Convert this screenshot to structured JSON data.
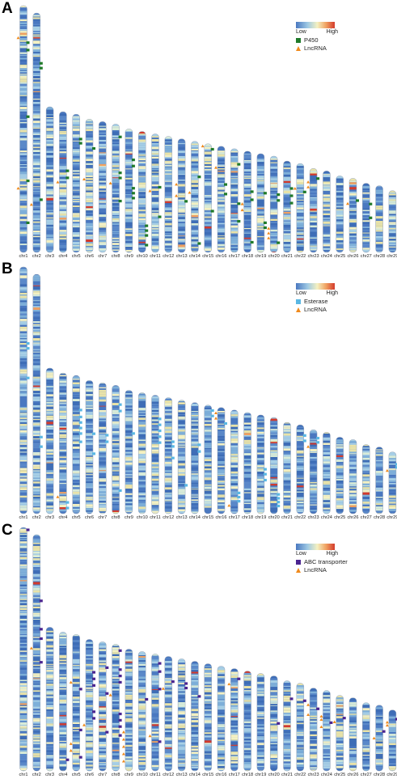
{
  "chromosomes": [
    "chr1",
    "chr2",
    "chr3",
    "chr4",
    "chr5",
    "chr6",
    "chr7",
    "chr8",
    "chr9",
    "chr10",
    "chr11",
    "chr12",
    "chr13",
    "chr14",
    "chr15",
    "chr16",
    "chr17",
    "chr18",
    "chr19",
    "chr20",
    "chr21",
    "chr22",
    "chr23",
    "chr24",
    "chr25",
    "chr26",
    "chr27",
    "chr28",
    "chr29"
  ],
  "chr_lengths_rel": [
    1.0,
    0.97,
    0.59,
    0.57,
    0.56,
    0.54,
    0.53,
    0.52,
    0.5,
    0.49,
    0.48,
    0.47,
    0.46,
    0.45,
    0.44,
    0.43,
    0.42,
    0.41,
    0.4,
    0.39,
    0.37,
    0.36,
    0.34,
    0.33,
    0.31,
    0.3,
    0.28,
    0.27,
    0.25
  ],
  "colors": {
    "low": "#4a78c0",
    "mid": "#f4f1c2",
    "high": "#d33a2c",
    "lncrna": "#f08a1c",
    "p450": "#1f7a2a",
    "esterase": "#5ab7e3",
    "abc": "#4b2590"
  },
  "panels": [
    {
      "letter": "A",
      "legend": {
        "low": "Low",
        "high": "High",
        "gene_label": "P450",
        "lnc_label": "LncRNA",
        "gene_color": "#1f7a2a"
      },
      "markers": [
        {
          "chr": 1,
          "pos": 0.15,
          "type": "gene"
        },
        {
          "chr": 1,
          "pos": 0.18,
          "type": "gene"
        },
        {
          "chr": 1,
          "pos": 0.13,
          "type": "lnc"
        },
        {
          "chr": 1,
          "pos": 0.45,
          "type": "gene"
        },
        {
          "chr": 1,
          "pos": 0.71,
          "type": "gene"
        },
        {
          "chr": 1,
          "pos": 0.74,
          "type": "lnc"
        },
        {
          "chr": 1,
          "pos": 0.88,
          "type": "gene"
        },
        {
          "chr": 2,
          "pos": 0.21,
          "type": "gene"
        },
        {
          "chr": 2,
          "pos": 0.23,
          "type": "gene"
        },
        {
          "chr": 2,
          "pos": 0.78,
          "type": "gene"
        },
        {
          "chr": 2,
          "pos": 0.8,
          "type": "lnc"
        },
        {
          "chr": 4,
          "pos": 0.42,
          "type": "gene"
        },
        {
          "chr": 4,
          "pos": 0.47,
          "type": "gene"
        },
        {
          "chr": 4,
          "pos": 0.5,
          "type": "lnc"
        },
        {
          "chr": 5,
          "pos": 0.18,
          "type": "gene"
        },
        {
          "chr": 5,
          "pos": 0.21,
          "type": "gene"
        },
        {
          "chr": 6,
          "pos": 0.22,
          "type": "gene"
        },
        {
          "chr": 6,
          "pos": 0.45,
          "type": "lnc"
        },
        {
          "chr": 8,
          "pos": 0.1,
          "type": "gene"
        },
        {
          "chr": 8,
          "pos": 0.38,
          "type": "gene"
        },
        {
          "chr": 8,
          "pos": 0.42,
          "type": "gene"
        },
        {
          "chr": 8,
          "pos": 0.46,
          "type": "lnc"
        },
        {
          "chr": 8,
          "pos": 0.6,
          "type": "gene"
        },
        {
          "chr": 9,
          "pos": 0.25,
          "type": "gene"
        },
        {
          "chr": 9,
          "pos": 0.3,
          "type": "gene"
        },
        {
          "chr": 9,
          "pos": 0.48,
          "type": "gene"
        },
        {
          "chr": 9,
          "pos": 0.52,
          "type": "gene"
        },
        {
          "chr": 9,
          "pos": 0.56,
          "type": "gene"
        },
        {
          "chr": 10,
          "pos": 0.78,
          "type": "gene"
        },
        {
          "chr": 10,
          "pos": 0.82,
          "type": "gene"
        },
        {
          "chr": 10,
          "pos": 0.86,
          "type": "gene"
        },
        {
          "chr": 10,
          "pos": 0.94,
          "type": "gene"
        },
        {
          "chr": 11,
          "pos": 0.45,
          "type": "gene"
        },
        {
          "chr": 11,
          "pos": 0.48,
          "type": "lnc"
        },
        {
          "chr": 11,
          "pos": 0.7,
          "type": "gene"
        },
        {
          "chr": 13,
          "pos": 0.4,
          "type": "lnc"
        },
        {
          "chr": 13,
          "pos": 0.5,
          "type": "lnc"
        },
        {
          "chr": 13,
          "pos": 0.55,
          "type": "gene"
        },
        {
          "chr": 14,
          "pos": 0.32,
          "type": "gene"
        },
        {
          "chr": 14,
          "pos": 0.46,
          "type": "lnc"
        },
        {
          "chr": 14,
          "pos": 0.92,
          "type": "gene"
        },
        {
          "chr": 15,
          "pos": 0.02,
          "type": "lnc"
        },
        {
          "chr": 15,
          "pos": 0.05,
          "type": "gene"
        },
        {
          "chr": 15,
          "pos": 0.62,
          "type": "gene"
        },
        {
          "chr": 16,
          "pos": 0.2,
          "type": "lnc"
        },
        {
          "chr": 16,
          "pos": 0.36,
          "type": "gene"
        },
        {
          "chr": 16,
          "pos": 0.45,
          "type": "gene"
        },
        {
          "chr": 17,
          "pos": 0.15,
          "type": "gene"
        },
        {
          "chr": 17,
          "pos": 0.53,
          "type": "gene"
        },
        {
          "chr": 17,
          "pos": 0.7,
          "type": "gene"
        },
        {
          "chr": 18,
          "pos": 0.4,
          "type": "gene"
        },
        {
          "chr": 18,
          "pos": 0.48,
          "type": "gene"
        },
        {
          "chr": 18,
          "pos": 0.52,
          "type": "lnc"
        },
        {
          "chr": 18,
          "pos": 0.58,
          "type": "lnc"
        },
        {
          "chr": 18,
          "pos": 0.9,
          "type": "gene"
        },
        {
          "chr": 19,
          "pos": 0.4,
          "type": "gene"
        },
        {
          "chr": 19,
          "pos": 0.7,
          "type": "gene"
        },
        {
          "chr": 19,
          "pos": 0.75,
          "type": "gene"
        },
        {
          "chr": 20,
          "pos": 0.4,
          "type": "gene"
        },
        {
          "chr": 20,
          "pos": 0.46,
          "type": "gene"
        },
        {
          "chr": 20,
          "pos": 0.75,
          "type": "lnc"
        },
        {
          "chr": 20,
          "pos": 0.8,
          "type": "lnc"
        },
        {
          "chr": 20,
          "pos": 0.85,
          "type": "lnc"
        },
        {
          "chr": 20,
          "pos": 0.9,
          "type": "gene"
        },
        {
          "chr": 21,
          "pos": 0.3,
          "type": "gene"
        },
        {
          "chr": 21,
          "pos": 0.38,
          "type": "gene"
        },
        {
          "chr": 21,
          "pos": 0.46,
          "type": "gene"
        },
        {
          "chr": 22,
          "pos": 0.28,
          "type": "lnc"
        },
        {
          "chr": 22,
          "pos": 0.32,
          "type": "gene"
        },
        {
          "chr": 23,
          "pos": 0.12,
          "type": "gene"
        },
        {
          "chr": 23,
          "pos": 0.16,
          "type": "lnc"
        },
        {
          "chr": 23,
          "pos": 0.22,
          "type": "lnc"
        },
        {
          "chr": 26,
          "pos": 0.3,
          "type": "gene"
        },
        {
          "chr": 26,
          "pos": 0.34,
          "type": "lnc"
        },
        {
          "chr": 27,
          "pos": 0.3,
          "type": "gene"
        },
        {
          "chr": 27,
          "pos": 0.5,
          "type": "gene"
        }
      ]
    },
    {
      "letter": "B",
      "legend": {
        "low": "Low",
        "high": "High",
        "gene_label": "Esterase",
        "lnc_label": "LncRNA",
        "gene_color": "#5ab7e3"
      },
      "markers": [
        {
          "chr": 1,
          "pos": 0.31,
          "type": "gene"
        },
        {
          "chr": 1,
          "pos": 0.33,
          "type": "gene"
        },
        {
          "chr": 1,
          "pos": 0.45,
          "type": "gene"
        },
        {
          "chr": 2,
          "pos": 0.68,
          "type": "gene"
        },
        {
          "chr": 2,
          "pos": 0.72,
          "type": "gene"
        },
        {
          "chr": 4,
          "pos": 0.88,
          "type": "lnc"
        },
        {
          "chr": 4,
          "pos": 0.92,
          "type": "gene"
        },
        {
          "chr": 4,
          "pos": 0.96,
          "type": "gene"
        },
        {
          "chr": 5,
          "pos": 0.25,
          "type": "gene"
        },
        {
          "chr": 5,
          "pos": 0.3,
          "type": "gene"
        },
        {
          "chr": 5,
          "pos": 0.34,
          "type": "gene"
        },
        {
          "chr": 5,
          "pos": 0.38,
          "type": "gene"
        },
        {
          "chr": 5,
          "pos": 0.42,
          "type": "gene"
        },
        {
          "chr": 5,
          "pos": 0.48,
          "type": "gene"
        },
        {
          "chr": 6,
          "pos": 0.4,
          "type": "gene"
        },
        {
          "chr": 6,
          "pos": 0.55,
          "type": "gene"
        },
        {
          "chr": 7,
          "pos": 0.4,
          "type": "gene"
        },
        {
          "chr": 7,
          "pos": 0.45,
          "type": "gene"
        },
        {
          "chr": 8,
          "pos": 0.15,
          "type": "gene"
        },
        {
          "chr": 8,
          "pos": 0.2,
          "type": "gene"
        },
        {
          "chr": 8,
          "pos": 0.82,
          "type": "gene"
        },
        {
          "chr": 9,
          "pos": 0.35,
          "type": "gene"
        },
        {
          "chr": 11,
          "pos": 0.2,
          "type": "gene"
        },
        {
          "chr": 11,
          "pos": 0.25,
          "type": "gene"
        },
        {
          "chr": 11,
          "pos": 0.3,
          "type": "gene"
        },
        {
          "chr": 11,
          "pos": 0.35,
          "type": "gene"
        },
        {
          "chr": 11,
          "pos": 0.4,
          "type": "gene"
        },
        {
          "chr": 12,
          "pos": 0.38,
          "type": "gene"
        },
        {
          "chr": 12,
          "pos": 0.42,
          "type": "gene"
        },
        {
          "chr": 12,
          "pos": 0.52,
          "type": "gene"
        },
        {
          "chr": 13,
          "pos": 0.75,
          "type": "gene"
        },
        {
          "chr": 14,
          "pos": 0.38,
          "type": "gene"
        },
        {
          "chr": 14,
          "pos": 0.44,
          "type": "gene"
        },
        {
          "chr": 15,
          "pos": 0.05,
          "type": "gene"
        },
        {
          "chr": 15,
          "pos": 0.1,
          "type": "gene"
        },
        {
          "chr": 16,
          "pos": 0.05,
          "type": "lnc"
        },
        {
          "chr": 16,
          "pos": 0.1,
          "type": "lnc"
        },
        {
          "chr": 16,
          "pos": 0.15,
          "type": "gene"
        },
        {
          "chr": 17,
          "pos": 0.8,
          "type": "gene"
        },
        {
          "chr": 17,
          "pos": 0.84,
          "type": "gene"
        },
        {
          "chr": 17,
          "pos": 0.88,
          "type": "gene"
        },
        {
          "chr": 17,
          "pos": 0.92,
          "type": "lnc"
        },
        {
          "chr": 19,
          "pos": 0.55,
          "type": "gene"
        },
        {
          "chr": 19,
          "pos": 0.6,
          "type": "gene"
        },
        {
          "chr": 19,
          "pos": 0.66,
          "type": "gene"
        },
        {
          "chr": 20,
          "pos": 0.8,
          "type": "gene"
        },
        {
          "chr": 20,
          "pos": 0.84,
          "type": "gene"
        },
        {
          "chr": 20,
          "pos": 0.88,
          "type": "gene"
        },
        {
          "chr": 20,
          "pos": 0.92,
          "type": "gene"
        },
        {
          "chr": 22,
          "pos": 0.12,
          "type": "gene"
        },
        {
          "chr": 22,
          "pos": 0.18,
          "type": "gene"
        },
        {
          "chr": 23,
          "pos": 0.1,
          "type": "gene"
        },
        {
          "chr": 23,
          "pos": 0.15,
          "type": "gene"
        },
        {
          "chr": 23,
          "pos": 0.2,
          "type": "lnc"
        },
        {
          "chr": 29,
          "pos": 0.2,
          "type": "gene"
        },
        {
          "chr": 29,
          "pos": 0.25,
          "type": "gene"
        },
        {
          "chr": 29,
          "pos": 0.3,
          "type": "lnc"
        }
      ]
    },
    {
      "letter": "C",
      "legend": {
        "low": "Low",
        "high": "High",
        "gene_label": "ABC transporter",
        "lnc_label": "LncRNA",
        "gene_color": "#4b2590"
      },
      "markers": [
        {
          "chr": 1,
          "pos": 0.01,
          "type": "gene"
        },
        {
          "chr": 2,
          "pos": 0.28,
          "type": "gene"
        },
        {
          "chr": 2,
          "pos": 0.4,
          "type": "gene"
        },
        {
          "chr": 2,
          "pos": 0.44,
          "type": "gene"
        },
        {
          "chr": 2,
          "pos": 0.48,
          "type": "lnc"
        },
        {
          "chr": 2,
          "pos": 0.54,
          "type": "gene"
        },
        {
          "chr": 4,
          "pos": 0.92,
          "type": "gene"
        },
        {
          "chr": 5,
          "pos": 0.35,
          "type": "lnc"
        },
        {
          "chr": 5,
          "pos": 0.4,
          "type": "gene"
        },
        {
          "chr": 5,
          "pos": 0.7,
          "type": "gene"
        },
        {
          "chr": 5,
          "pos": 0.8,
          "type": "lnc"
        },
        {
          "chr": 5,
          "pos": 0.85,
          "type": "lnc"
        },
        {
          "chr": 5,
          "pos": 0.9,
          "type": "gene"
        },
        {
          "chr": 6,
          "pos": 0.25,
          "type": "gene"
        },
        {
          "chr": 6,
          "pos": 0.3,
          "type": "gene"
        },
        {
          "chr": 6,
          "pos": 0.35,
          "type": "gene"
        },
        {
          "chr": 6,
          "pos": 0.55,
          "type": "gene"
        },
        {
          "chr": 6,
          "pos": 0.6,
          "type": "gene"
        },
        {
          "chr": 6,
          "pos": 0.65,
          "type": "lnc"
        },
        {
          "chr": 7,
          "pos": 0.2,
          "type": "gene"
        },
        {
          "chr": 7,
          "pos": 0.4,
          "type": "gene"
        },
        {
          "chr": 7,
          "pos": 0.7,
          "type": "gene"
        },
        {
          "chr": 8,
          "pos": 0.05,
          "type": "gene"
        },
        {
          "chr": 8,
          "pos": 0.2,
          "type": "gene"
        },
        {
          "chr": 8,
          "pos": 0.25,
          "type": "gene"
        },
        {
          "chr": 8,
          "pos": 0.3,
          "type": "gene"
        },
        {
          "chr": 8,
          "pos": 0.4,
          "type": "lnc"
        },
        {
          "chr": 8,
          "pos": 0.55,
          "type": "gene"
        },
        {
          "chr": 8,
          "pos": 0.6,
          "type": "gene"
        },
        {
          "chr": 8,
          "pos": 0.65,
          "type": "gene"
        },
        {
          "chr": 8,
          "pos": 0.72,
          "type": "gene"
        },
        {
          "chr": 9,
          "pos": 0.68,
          "type": "lnc"
        },
        {
          "chr": 9,
          "pos": 0.74,
          "type": "lnc"
        },
        {
          "chr": 9,
          "pos": 0.8,
          "type": "lnc"
        },
        {
          "chr": 9,
          "pos": 0.86,
          "type": "lnc"
        },
        {
          "chr": 9,
          "pos": 0.92,
          "type": "lnc"
        },
        {
          "chr": 10,
          "pos": 0.4,
          "type": "gene"
        },
        {
          "chr": 11,
          "pos": 0.08,
          "type": "gene"
        },
        {
          "chr": 11,
          "pos": 0.15,
          "type": "gene"
        },
        {
          "chr": 11,
          "pos": 0.3,
          "type": "gene"
        },
        {
          "chr": 11,
          "pos": 0.7,
          "type": "lnc"
        },
        {
          "chr": 11,
          "pos": 0.75,
          "type": "gene"
        },
        {
          "chr": 12,
          "pos": 0.22,
          "type": "gene"
        },
        {
          "chr": 12,
          "pos": 0.28,
          "type": "lnc"
        },
        {
          "chr": 13,
          "pos": 0.22,
          "type": "gene"
        },
        {
          "chr": 13,
          "pos": 0.26,
          "type": "gene"
        },
        {
          "chr": 14,
          "pos": 0.32,
          "type": "gene"
        },
        {
          "chr": 17,
          "pos": 0.1,
          "type": "gene"
        },
        {
          "chr": 17,
          "pos": 0.15,
          "type": "lnc"
        },
        {
          "chr": 20,
          "pos": 0.5,
          "type": "gene"
        },
        {
          "chr": 21,
          "pos": 0.2,
          "type": "gene"
        },
        {
          "chr": 22,
          "pos": 0.2,
          "type": "gene"
        },
        {
          "chr": 23,
          "pos": 0.2,
          "type": "lnc"
        },
        {
          "chr": 23,
          "pos": 0.25,
          "type": "gene"
        },
        {
          "chr": 23,
          "pos": 0.32,
          "type": "lnc"
        },
        {
          "chr": 24,
          "pos": 0.32,
          "type": "lnc"
        },
        {
          "chr": 24,
          "pos": 0.36,
          "type": "lnc"
        },
        {
          "chr": 24,
          "pos": 0.4,
          "type": "gene"
        },
        {
          "chr": 24,
          "pos": 0.45,
          "type": "lnc"
        },
        {
          "chr": 25,
          "pos": 0.3,
          "type": "gene"
        },
        {
          "chr": 25,
          "pos": 0.35,
          "type": "lnc"
        },
        {
          "chr": 28,
          "pos": 0.4,
          "type": "gene"
        },
        {
          "chr": 28,
          "pos": 0.5,
          "type": "lnc"
        },
        {
          "chr": 29,
          "pos": 0.15,
          "type": "gene"
        },
        {
          "chr": 29,
          "pos": 0.2,
          "type": "lnc"
        },
        {
          "chr": 29,
          "pos": 0.25,
          "type": "lnc"
        }
      ]
    }
  ]
}
